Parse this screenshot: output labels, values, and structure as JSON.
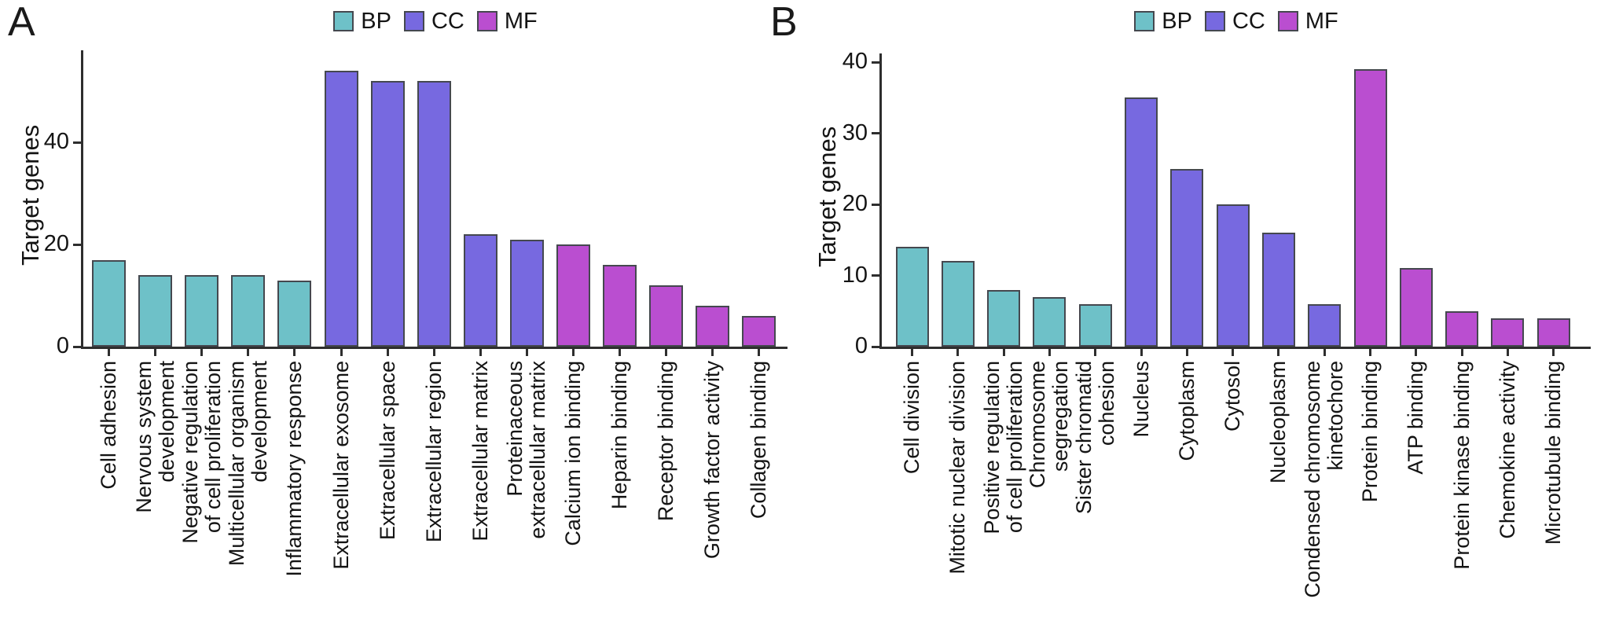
{
  "figure": {
    "background": "#ffffff"
  },
  "legend": {
    "items": [
      {
        "key": "BP",
        "label": "BP",
        "color": "#6ec1c8"
      },
      {
        "key": "CC",
        "label": "CC",
        "color": "#7769e0"
      },
      {
        "key": "MF",
        "label": "MF",
        "color": "#ba4ed0"
      }
    ]
  },
  "chart_data": [
    {
      "type": "bar",
      "panel_label": "A",
      "title": "",
      "xlabel": "",
      "ylabel": "Target genes",
      "yticks": [
        0,
        20,
        40
      ],
      "ylim": [
        0,
        58
      ],
      "grid": false,
      "legend_position": "top",
      "legend_entries": [
        "BP",
        "CC",
        "MF"
      ],
      "categories": [
        "Cell adhesion",
        "Nervous system\ndevelopment",
        "Negative regulation\nof cell proliferation",
        "Multicellular organism\ndevelopment",
        "Inflammatory response",
        "Extracellular exosome",
        "Extracellular space",
        "Extracellular region",
        "Extracellular matrix",
        "Proteinaceous\nextracellular matrix",
        "Calcium ion binding",
        "Heparin binding",
        "Receptor binding",
        "Growth factor activity",
        "Collagen binding"
      ],
      "groups": [
        "BP",
        "BP",
        "BP",
        "BP",
        "BP",
        "CC",
        "CC",
        "CC",
        "CC",
        "CC",
        "MF",
        "MF",
        "MF",
        "MF",
        "MF"
      ],
      "values": [
        17,
        14,
        14,
        14,
        13,
        54,
        52,
        52,
        22,
        21,
        20,
        16,
        12,
        8,
        6
      ]
    },
    {
      "type": "bar",
      "panel_label": "B",
      "title": "",
      "xlabel": "",
      "ylabel": "Target genes",
      "yticks": [
        0,
        10,
        20,
        30,
        40
      ],
      "ylim": [
        0,
        41
      ],
      "grid": false,
      "legend_position": "top",
      "legend_entries": [
        "BP",
        "CC",
        "MF"
      ],
      "categories": [
        "Cell division",
        "Mitotic nuclear division",
        "Positive regulation\nof cell proliferation",
        "Chromosome\nsegregation",
        "Sister chromatid\ncohesion",
        "Nucleus",
        "Cytoplasm",
        "Cytosol",
        "Nucleoplasm",
        "Condensed chromosome\nkinetochore",
        "Protein binding",
        "ATP binding",
        "Protein kinase binding",
        "Chemokine activity",
        "Microtubule binding"
      ],
      "groups": [
        "BP",
        "BP",
        "BP",
        "BP",
        "BP",
        "CC",
        "CC",
        "CC",
        "CC",
        "CC",
        "MF",
        "MF",
        "MF",
        "MF",
        "MF"
      ],
      "values": [
        14,
        12,
        8,
        7,
        6,
        35,
        25,
        20,
        16,
        6,
        39,
        11,
        5,
        4,
        4
      ]
    }
  ]
}
